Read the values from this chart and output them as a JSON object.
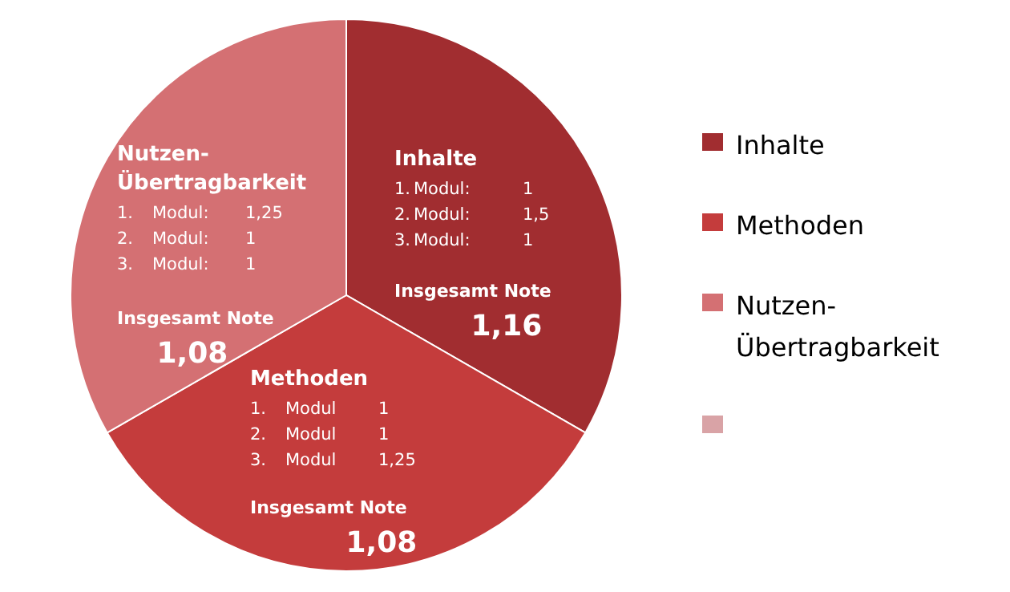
{
  "chart_data": {
    "type": "pie",
    "categories": [
      "Inhalte",
      "Methoden",
      "Nutzen-\nÜbertragbarkeit",
      null
    ],
    "values": [
      33.3,
      33.4,
      33.3,
      0
    ],
    "colors": [
      "#a12d30",
      "#c43c3c",
      "#d47073",
      "#d9a3a6"
    ],
    "legend": "right",
    "annotations": [
      "Inhalte\n1.\tModul:\t1\n2.\tModul:\t1,5\n3.\tModul:\t1\nInsgesamt Note\n1,16",
      "Methoden\n1.\tModul\t1\n2.\tModul\t1\n3.\tModul\t1,25\nInsgesamt Note\n1,08",
      "Nutzen-\nÜbertragbarkeit\n1.\tModul:\t1,25\n2.\tModul:\t1\n3.\tModul:\t1\nInsgesamt Note\n1,08"
    ]
  }
}
